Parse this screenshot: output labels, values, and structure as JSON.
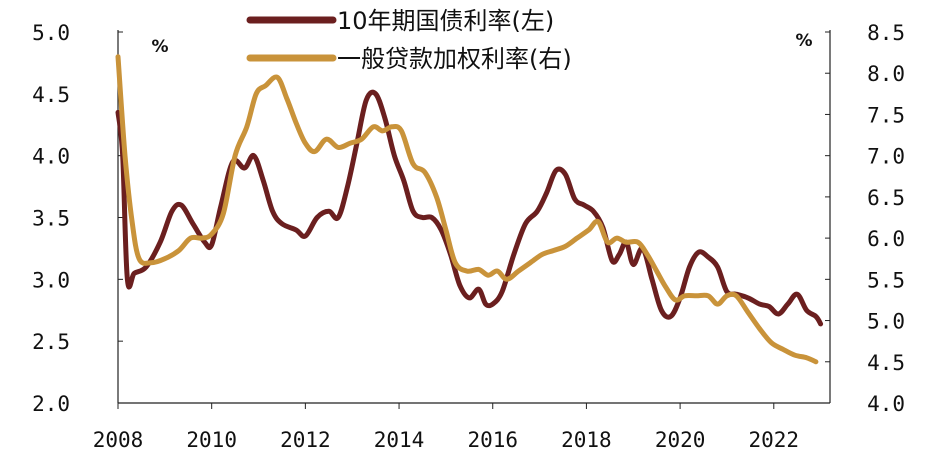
{
  "chart_data": {
    "type": "line",
    "x_ticks": [
      "2008",
      "2010",
      "2012",
      "2014",
      "2016",
      "2018",
      "2020",
      "2022"
    ],
    "x_range": [
      2008,
      2023.2
    ],
    "y_left": {
      "unit": "%",
      "range": [
        2.0,
        5.0
      ],
      "ticks": [
        "2.0",
        "2.5",
        "3.0",
        "3.5",
        "4.0",
        "4.5",
        "5.0"
      ]
    },
    "y_right": {
      "unit": "%",
      "range": [
        4.0,
        8.5
      ],
      "ticks": [
        "4.0",
        "4.5",
        "5.0",
        "5.5",
        "6.0",
        "6.5",
        "7.0",
        "7.5",
        "8.0",
        "8.5"
      ]
    },
    "legend_position": "top-center",
    "grid": false,
    "series": [
      {
        "name": "10年期国债利率(左)",
        "axis": "left",
        "color": "#6b1f1f",
        "points": [
          [
            2008.0,
            4.35
          ],
          [
            2008.1,
            4.0
          ],
          [
            2008.2,
            3.0
          ],
          [
            2008.35,
            3.05
          ],
          [
            2008.6,
            3.1
          ],
          [
            2008.9,
            3.3
          ],
          [
            2009.15,
            3.55
          ],
          [
            2009.35,
            3.6
          ],
          [
            2009.6,
            3.45
          ],
          [
            2009.85,
            3.3
          ],
          [
            2010.0,
            3.28
          ],
          [
            2010.2,
            3.6
          ],
          [
            2010.45,
            3.95
          ],
          [
            2010.7,
            3.9
          ],
          [
            2010.9,
            4.0
          ],
          [
            2011.1,
            3.8
          ],
          [
            2011.3,
            3.55
          ],
          [
            2011.5,
            3.45
          ],
          [
            2011.8,
            3.4
          ],
          [
            2012.0,
            3.35
          ],
          [
            2012.25,
            3.5
          ],
          [
            2012.5,
            3.55
          ],
          [
            2012.7,
            3.5
          ],
          [
            2012.9,
            3.75
          ],
          [
            2013.1,
            4.1
          ],
          [
            2013.3,
            4.45
          ],
          [
            2013.5,
            4.5
          ],
          [
            2013.7,
            4.3
          ],
          [
            2013.9,
            4.0
          ],
          [
            2014.1,
            3.8
          ],
          [
            2014.3,
            3.55
          ],
          [
            2014.5,
            3.5
          ],
          [
            2014.7,
            3.5
          ],
          [
            2014.9,
            3.4
          ],
          [
            2015.1,
            3.2
          ],
          [
            2015.3,
            2.95
          ],
          [
            2015.5,
            2.85
          ],
          [
            2015.7,
            2.92
          ],
          [
            2015.85,
            2.8
          ],
          [
            2016.0,
            2.8
          ],
          [
            2016.2,
            2.9
          ],
          [
            2016.45,
            3.2
          ],
          [
            2016.7,
            3.45
          ],
          [
            2016.95,
            3.55
          ],
          [
            2017.15,
            3.7
          ],
          [
            2017.35,
            3.88
          ],
          [
            2017.55,
            3.85
          ],
          [
            2017.75,
            3.65
          ],
          [
            2017.95,
            3.6
          ],
          [
            2018.15,
            3.55
          ],
          [
            2018.35,
            3.42
          ],
          [
            2018.55,
            3.15
          ],
          [
            2018.7,
            3.2
          ],
          [
            2018.85,
            3.3
          ],
          [
            2019.0,
            3.12
          ],
          [
            2019.2,
            3.25
          ],
          [
            2019.4,
            3.0
          ],
          [
            2019.6,
            2.75
          ],
          [
            2019.8,
            2.7
          ],
          [
            2020.0,
            2.85
          ],
          [
            2020.2,
            3.1
          ],
          [
            2020.4,
            3.22
          ],
          [
            2020.6,
            3.18
          ],
          [
            2020.8,
            3.1
          ],
          [
            2021.0,
            2.9
          ],
          [
            2021.2,
            2.88
          ],
          [
            2021.45,
            2.85
          ],
          [
            2021.7,
            2.8
          ],
          [
            2021.9,
            2.78
          ],
          [
            2022.1,
            2.72
          ],
          [
            2022.3,
            2.8
          ],
          [
            2022.5,
            2.88
          ],
          [
            2022.7,
            2.75
          ],
          [
            2022.9,
            2.7
          ],
          [
            2023.0,
            2.64
          ]
        ]
      },
      {
        "name": "一般贷款加权利率(右)",
        "axis": "right",
        "color": "#c9933a",
        "points": [
          [
            2008.0,
            8.2
          ],
          [
            2008.15,
            7.0
          ],
          [
            2008.3,
            6.2
          ],
          [
            2008.45,
            5.75
          ],
          [
            2008.7,
            5.7
          ],
          [
            2009.0,
            5.75
          ],
          [
            2009.3,
            5.85
          ],
          [
            2009.55,
            6.0
          ],
          [
            2009.8,
            6.0
          ],
          [
            2010.0,
            6.05
          ],
          [
            2010.25,
            6.3
          ],
          [
            2010.5,
            7.0
          ],
          [
            2010.75,
            7.35
          ],
          [
            2010.95,
            7.75
          ],
          [
            2011.15,
            7.85
          ],
          [
            2011.4,
            7.95
          ],
          [
            2011.6,
            7.7
          ],
          [
            2011.8,
            7.4
          ],
          [
            2012.0,
            7.15
          ],
          [
            2012.2,
            7.05
          ],
          [
            2012.45,
            7.2
          ],
          [
            2012.7,
            7.1
          ],
          [
            2012.95,
            7.15
          ],
          [
            2013.2,
            7.2
          ],
          [
            2013.45,
            7.35
          ],
          [
            2013.65,
            7.3
          ],
          [
            2013.85,
            7.35
          ],
          [
            2014.05,
            7.3
          ],
          [
            2014.3,
            6.9
          ],
          [
            2014.55,
            6.8
          ],
          [
            2014.8,
            6.5
          ],
          [
            2015.0,
            6.1
          ],
          [
            2015.2,
            5.7
          ],
          [
            2015.45,
            5.6
          ],
          [
            2015.7,
            5.62
          ],
          [
            2015.9,
            5.55
          ],
          [
            2016.1,
            5.6
          ],
          [
            2016.3,
            5.5
          ],
          [
            2016.55,
            5.6
          ],
          [
            2016.8,
            5.7
          ],
          [
            2017.05,
            5.8
          ],
          [
            2017.3,
            5.85
          ],
          [
            2017.55,
            5.9
          ],
          [
            2017.8,
            6.0
          ],
          [
            2018.05,
            6.1
          ],
          [
            2018.25,
            6.2
          ],
          [
            2018.45,
            5.95
          ],
          [
            2018.65,
            6.0
          ],
          [
            2018.85,
            5.95
          ],
          [
            2019.1,
            5.95
          ],
          [
            2019.3,
            5.8
          ],
          [
            2019.5,
            5.6
          ],
          [
            2019.7,
            5.4
          ],
          [
            2019.9,
            5.25
          ],
          [
            2020.1,
            5.3
          ],
          [
            2020.35,
            5.3
          ],
          [
            2020.6,
            5.3
          ],
          [
            2020.8,
            5.2
          ],
          [
            2021.0,
            5.3
          ],
          [
            2021.2,
            5.3
          ],
          [
            2021.45,
            5.1
          ],
          [
            2021.7,
            4.9
          ],
          [
            2021.95,
            4.73
          ],
          [
            2022.2,
            4.65
          ],
          [
            2022.45,
            4.58
          ],
          [
            2022.7,
            4.55
          ],
          [
            2022.9,
            4.5
          ]
        ]
      }
    ]
  }
}
